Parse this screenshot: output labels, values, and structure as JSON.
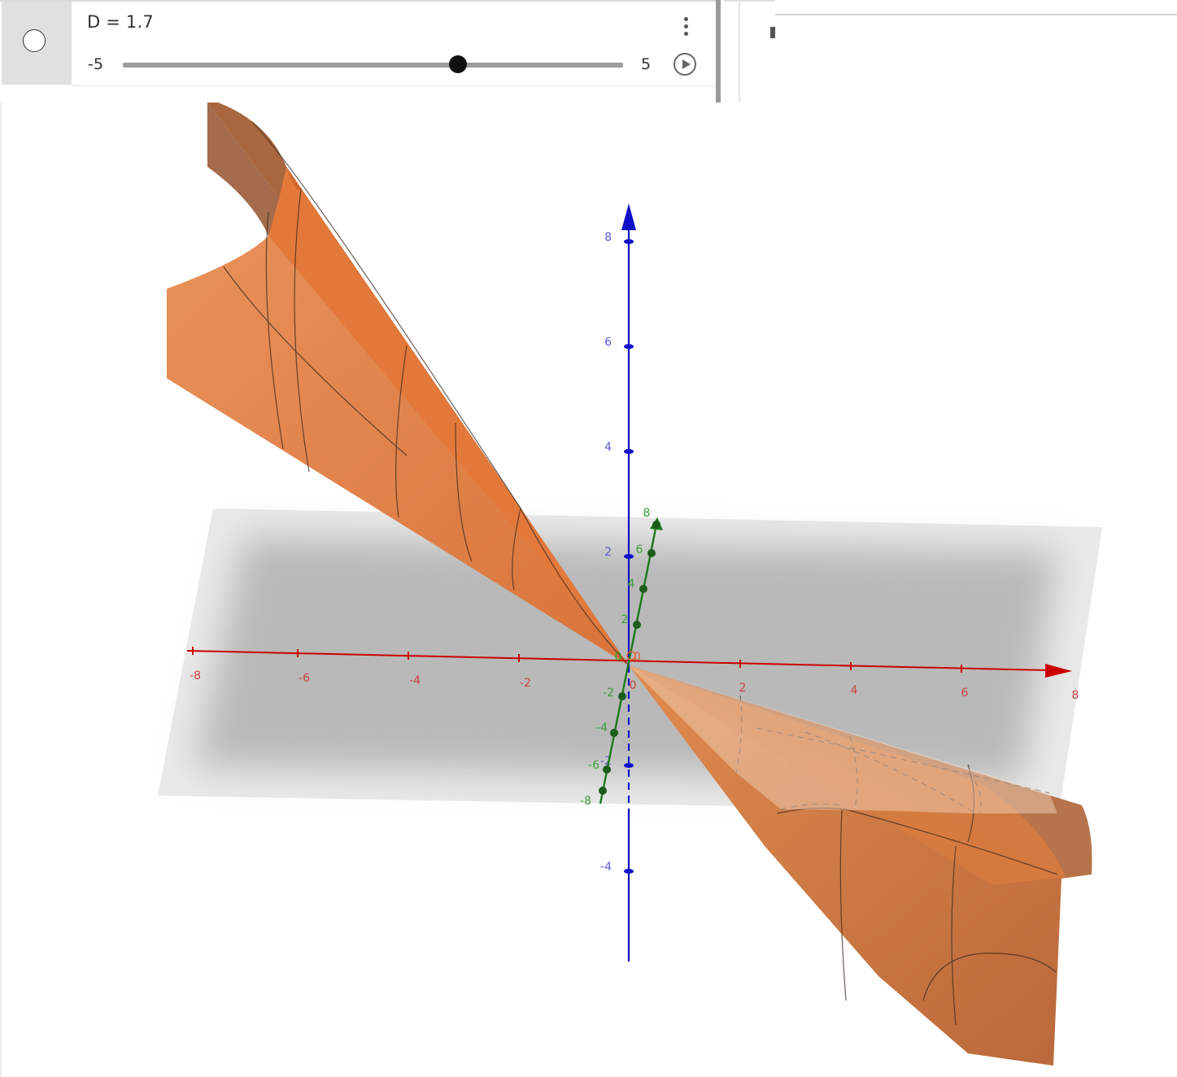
{
  "algebra": {
    "expression": "D = 1.7",
    "slider": {
      "min": -5,
      "max": 5,
      "value": 1.7,
      "min_label": "-5",
      "max_label": "5"
    }
  },
  "graphics": {
    "axes": {
      "x": {
        "color": "#cc0000",
        "ticks": [
          "-8",
          "-6",
          "-4",
          "-2",
          "0",
          "2",
          "4",
          "6",
          "8"
        ]
      },
      "y": {
        "color": "#1a7a1a",
        "ticks": [
          "-8",
          "-6",
          "-4",
          "-2",
          "0",
          "2",
          "4",
          "6",
          "8"
        ]
      },
      "z": {
        "color": "#1010c8",
        "ticks": [
          "8",
          "6",
          "4",
          "2",
          "-2",
          "-4"
        ]
      }
    },
    "origin_label": "0",
    "colors": {
      "surface": "#e08a4e",
      "surface_dark": "#c86a2c",
      "plane": "#bdbdbd"
    }
  }
}
